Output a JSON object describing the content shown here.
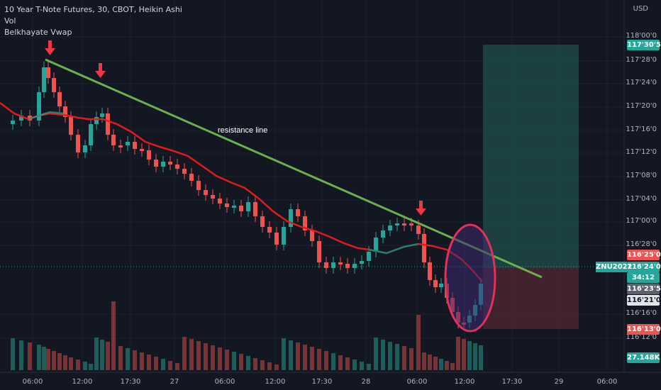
{
  "legend": {
    "symbol_line": "10 Year T-Note Futures, 30, CBOT, Heikin Ashi",
    "indicator_vol": "Vol",
    "indicator_vwap": "Belkhayate Vwap"
  },
  "axis": {
    "currency": "USD",
    "y_ticks": [
      "118'00'0",
      "117'28'0",
      "117'24'0",
      "117'20'0",
      "117'16'0",
      "117'12'0",
      "117'08'0",
      "117'04'0",
      "117'00'0",
      "116'28'0",
      "116'16'0",
      "116'12'0"
    ],
    "x_ticks": [
      "06:00",
      "12:00",
      "17:30",
      "27",
      "06:00",
      "12:00",
      "17:30",
      "28",
      "06:00",
      "12:00",
      "17:30",
      "29",
      "06:00"
    ]
  },
  "price_labels": {
    "target": "117'30'5",
    "stop_high": "116'25'0",
    "current": "116'24'0",
    "countdown": "34:12",
    "vwap": "116'23'5",
    "level": "116'21'0",
    "stop": "116'13'0",
    "volume": "27.148K"
  },
  "ticker": "ZNU2022",
  "annotation": "resistance line",
  "colors": {
    "background": "#131722",
    "up": "#26a69a",
    "down": "#ef5350",
    "vwap": "#e01b1b",
    "resistance": "#6ab04c",
    "arrow": "#f23645",
    "ellipse": "#e0325a"
  },
  "chart_data": {
    "type": "candlestick",
    "title": "10 Year T-Note Futures, 30, CBOT, Heikin Ashi",
    "ylabel": "USD",
    "ylim_label_range": [
      "116'12'0",
      "118'00'0"
    ]
  }
}
